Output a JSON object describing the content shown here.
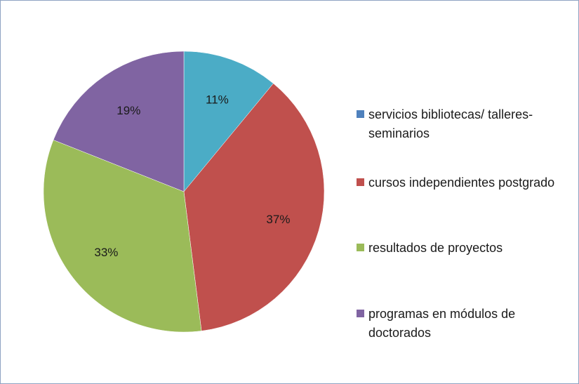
{
  "chart_data": {
    "type": "pie",
    "categories": [
      "servicios bibliotecas/ talleres-seminarios",
      "cursos independientes postgrado",
      "resultados de proyectos",
      "programas en módulos de doctorados"
    ],
    "values": [
      11,
      37,
      33,
      19
    ],
    "data_labels": [
      "11%",
      "37%",
      "33%",
      "19%"
    ],
    "colors": [
      "#4bacc6",
      "#c0504d",
      "#9bbb59",
      "#8064a2"
    ],
    "legend_colors": [
      "#4f81bd",
      "#c0504d",
      "#9bbb59",
      "#8064a2"
    ],
    "legend_placement": "right",
    "title": ""
  },
  "legend": {
    "items": [
      {
        "label": "servicios bibliotecas/ talleres-seminarios"
      },
      {
        "label": "cursos independientes postgrado"
      },
      {
        "label": "resultados de proyectos"
      },
      {
        "label": "programas en módulos de doctorados"
      }
    ]
  }
}
